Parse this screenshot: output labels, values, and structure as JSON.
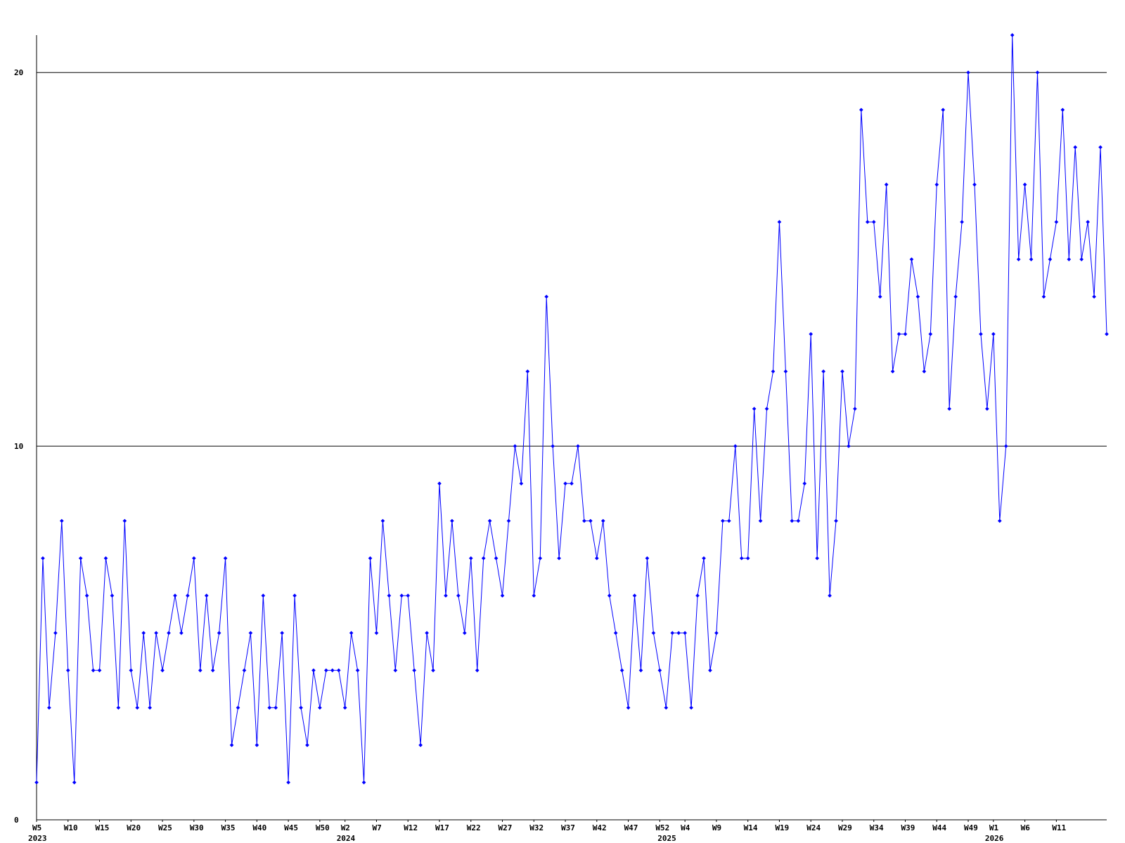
{
  "chart_data": {
    "type": "line",
    "series": [
      {
        "color": "#0000ff",
        "values": [
          1,
          7,
          3,
          5,
          8,
          4,
          1,
          7,
          6,
          4,
          4,
          7,
          6,
          3,
          8,
          4,
          3,
          5,
          3,
          5,
          4,
          5,
          6,
          5,
          6,
          7,
          4,
          6,
          4,
          5,
          7,
          2,
          3,
          4,
          5,
          2,
          6,
          3,
          3,
          5,
          1,
          6,
          3,
          2,
          4,
          3,
          4,
          4,
          4,
          3,
          5,
          4,
          1,
          7,
          5,
          8,
          6,
          4,
          6,
          6,
          4,
          2,
          5,
          4,
          9,
          6,
          8,
          6,
          5,
          7,
          4,
          7,
          8,
          7,
          6,
          8,
          10,
          9,
          12,
          6,
          7,
          14,
          10,
          7,
          9,
          9,
          10,
          8,
          8,
          7,
          8,
          6,
          5,
          4,
          3,
          6,
          4,
          7,
          5,
          4,
          3,
          5,
          5,
          5,
          3,
          6,
          7,
          4,
          5,
          8,
          8,
          10,
          7,
          7,
          11,
          8,
          11,
          12,
          16,
          12,
          8,
          8,
          9,
          13,
          7,
          12,
          6,
          8,
          12,
          10,
          11,
          19,
          16,
          16,
          14,
          17,
          12,
          13,
          13,
          15,
          14,
          12,
          13,
          17,
          19,
          11,
          14,
          16,
          20,
          17,
          13,
          11,
          13,
          8,
          10,
          21,
          15,
          17,
          15,
          20,
          14,
          15,
          16,
          19,
          15,
          18,
          15,
          16,
          14,
          18,
          13
        ]
      }
    ],
    "xlim": [
      0,
      170
    ],
    "xticks": [
      {
        "value": 0,
        "label": "W5"
      },
      {
        "value": 5,
        "label": "W10"
      },
      {
        "value": 10,
        "label": "W15"
      },
      {
        "value": 15,
        "label": "W20"
      },
      {
        "value": 20,
        "label": "W25"
      },
      {
        "value": 25,
        "label": "W30"
      },
      {
        "value": 30,
        "label": "W35"
      },
      {
        "value": 35,
        "label": "W40"
      },
      {
        "value": 40,
        "label": "W45"
      },
      {
        "value": 45,
        "label": "W50"
      },
      {
        "value": 49,
        "label": "W2"
      },
      {
        "value": 54,
        "label": "W7"
      },
      {
        "value": 59,
        "label": "W12"
      },
      {
        "value": 64,
        "label": "W17"
      },
      {
        "value": 69,
        "label": "W22"
      },
      {
        "value": 74,
        "label": "W27"
      },
      {
        "value": 79,
        "label": "W32"
      },
      {
        "value": 84,
        "label": "W37"
      },
      {
        "value": 89,
        "label": "W42"
      },
      {
        "value": 94,
        "label": "W47"
      },
      {
        "value": 99,
        "label": "W52"
      },
      {
        "value": 103,
        "label": "W4"
      },
      {
        "value": 108,
        "label": "W9"
      },
      {
        "value": 113,
        "label": "W14"
      },
      {
        "value": 118,
        "label": "W19"
      },
      {
        "value": 123,
        "label": "W24"
      },
      {
        "value": 128,
        "label": "W29"
      },
      {
        "value": 133,
        "label": "W34"
      },
      {
        "value": 138,
        "label": "W39"
      },
      {
        "value": 143,
        "label": "W44"
      },
      {
        "value": 148,
        "label": "W49"
      },
      {
        "value": 152,
        "label": "W1"
      },
      {
        "value": 157,
        "label": "W6"
      },
      {
        "value": 162,
        "label": "W11"
      }
    ],
    "year_labels": [
      {
        "value": 0,
        "label": "2023"
      },
      {
        "value": 49,
        "label": "2024"
      },
      {
        "value": 100,
        "label": "2025"
      },
      {
        "value": 152,
        "label": "2026"
      }
    ],
    "ylim": [
      0,
      21
    ],
    "yticks": [
      0,
      10,
      20
    ],
    "grid": true
  }
}
